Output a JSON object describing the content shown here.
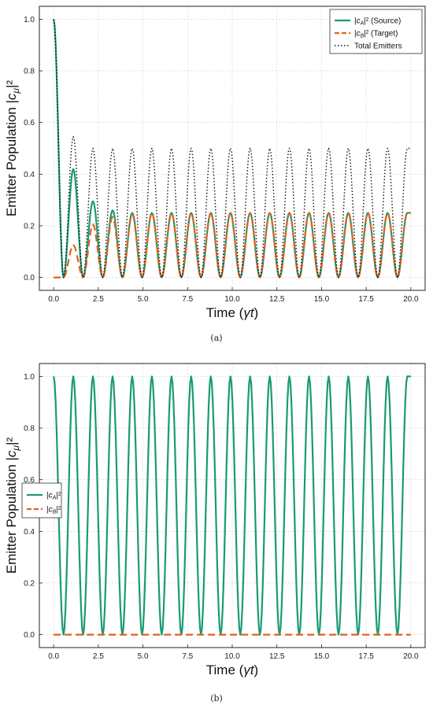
{
  "chart_data": [
    {
      "type": "line",
      "panel_caption": "(a)",
      "xlabel": "Time (γt)",
      "ylabel": "Emitter Population |cμ|²",
      "xlim": [
        -0.8,
        20.8
      ],
      "ylim": [
        -0.05,
        1.05
      ],
      "xticks": [
        "0.0",
        "2.5",
        "5.0",
        "7.5",
        "10.0",
        "12.5",
        "15.0",
        "17.5",
        "20.0"
      ],
      "yticks": [
        "0.0",
        "0.2",
        "0.4",
        "0.6",
        "0.8",
        "1.0"
      ],
      "grid": true,
      "legend_position": "top-right",
      "legend": [
        "|cA|² (Source)",
        "|cB|² (Target)",
        "Total Emitters"
      ],
      "series": [
        {
          "name": "|cA|² (Source)",
          "style": "solid",
          "color": "#1a9a75",
          "x": [
            0,
            0.55,
            1.1,
            1.65,
            2.2,
            2.75,
            3.3,
            3.85,
            4.4,
            4.95,
            5.5,
            6.05,
            6.6,
            7.15,
            7.7,
            8.25,
            8.8,
            9.35,
            9.9,
            10.45,
            11.0,
            11.55,
            12.1,
            12.65,
            13.2,
            13.75,
            14.3,
            14.85,
            15.4,
            15.95,
            16.5,
            17.05,
            17.6,
            18.15,
            18.7,
            19.25,
            19.8,
            20.0
          ],
          "y": [
            1.0,
            0.0,
            0.42,
            0.0,
            0.295,
            0.0,
            0.26,
            0.0,
            0.25,
            0.0,
            0.25,
            0.0,
            0.25,
            0.0,
            0.25,
            0.0,
            0.25,
            0.0,
            0.25,
            0.0,
            0.25,
            0.0,
            0.25,
            0.0,
            0.25,
            0.0,
            0.25,
            0.0,
            0.25,
            0.0,
            0.25,
            0.0,
            0.25,
            0.0,
            0.25,
            0.0,
            0.25,
            0.25
          ]
        },
        {
          "name": "|cB|² (Target)",
          "style": "dashed",
          "color": "#e2611b",
          "x": [
            0,
            0.55,
            1.1,
            1.65,
            2.2,
            2.75,
            3.3,
            3.85,
            4.4,
            4.95,
            5.5,
            6.05,
            6.6,
            7.15,
            7.7,
            8.25,
            8.8,
            9.35,
            9.9,
            10.45,
            11.0,
            11.55,
            12.1,
            12.65,
            13.2,
            13.75,
            14.3,
            14.85,
            15.4,
            15.95,
            16.5,
            17.05,
            17.6,
            18.15,
            18.7,
            19.25,
            19.8,
            20.0
          ],
          "y": [
            0.0,
            0.0,
            0.125,
            0.0,
            0.205,
            0.0,
            0.235,
            0.0,
            0.245,
            0.0,
            0.25,
            0.0,
            0.25,
            0.0,
            0.25,
            0.0,
            0.25,
            0.0,
            0.25,
            0.0,
            0.25,
            0.0,
            0.25,
            0.0,
            0.25,
            0.0,
            0.25,
            0.0,
            0.25,
            0.0,
            0.25,
            0.0,
            0.25,
            0.0,
            0.25,
            0.0,
            0.25,
            0.25
          ]
        },
        {
          "name": "Total Emitters",
          "style": "dotted",
          "color": "#111111",
          "x": [
            0,
            0.55,
            1.1,
            1.65,
            2.2,
            2.75,
            3.3,
            3.85,
            4.4,
            4.95,
            5.5,
            6.05,
            6.6,
            7.15,
            7.7,
            8.25,
            8.8,
            9.35,
            9.9,
            10.45,
            11.0,
            11.55,
            12.1,
            12.65,
            13.2,
            13.75,
            14.3,
            14.85,
            15.4,
            15.95,
            16.5,
            17.05,
            17.6,
            18.15,
            18.7,
            19.25,
            19.8,
            20.0
          ],
          "y": [
            1.0,
            0.0,
            0.545,
            0.0,
            0.5,
            0.0,
            0.5,
            0.0,
            0.5,
            0.0,
            0.5,
            0.0,
            0.5,
            0.0,
            0.5,
            0.0,
            0.5,
            0.0,
            0.5,
            0.0,
            0.5,
            0.0,
            0.5,
            0.0,
            0.5,
            0.0,
            0.5,
            0.0,
            0.5,
            0.0,
            0.5,
            0.0,
            0.5,
            0.0,
            0.5,
            0.0,
            0.5,
            0.5
          ]
        }
      ]
    },
    {
      "type": "line",
      "panel_caption": "(b)",
      "xlabel": "Time (γt)",
      "ylabel": "Emitter Population |cμ|²",
      "xlim": [
        -0.8,
        20.8
      ],
      "ylim": [
        -0.05,
        1.05
      ],
      "xticks": [
        "0.0",
        "2.5",
        "5.0",
        "7.5",
        "10.0",
        "12.5",
        "15.0",
        "17.5",
        "20.0"
      ],
      "yticks": [
        "0.0",
        "0.2",
        "0.4",
        "0.6",
        "0.8",
        "1.0"
      ],
      "grid": true,
      "legend_position": "center-left",
      "legend": [
        "|cA|²",
        "|cB|²"
      ],
      "series": [
        {
          "name": "|cA|²",
          "style": "solid",
          "color": "#1a9a75",
          "x": [
            0,
            0.55,
            1.1,
            1.65,
            2.2,
            2.75,
            3.3,
            3.85,
            4.4,
            4.95,
            5.5,
            6.05,
            6.6,
            7.15,
            7.7,
            8.25,
            8.8,
            9.35,
            9.9,
            10.45,
            11.0,
            11.55,
            12.1,
            12.65,
            13.2,
            13.75,
            14.3,
            14.85,
            15.4,
            15.95,
            16.5,
            17.05,
            17.6,
            18.15,
            18.7,
            19.25,
            19.8,
            20.0
          ],
          "y": [
            1.0,
            0.0,
            1.0,
            0.0,
            1.0,
            0.0,
            1.0,
            0.0,
            1.0,
            0.0,
            1.0,
            0.0,
            1.0,
            0.0,
            1.0,
            0.0,
            1.0,
            0.0,
            1.0,
            0.0,
            1.0,
            0.0,
            1.0,
            0.0,
            1.0,
            0.0,
            1.0,
            0.0,
            1.0,
            0.0,
            1.0,
            0.0,
            1.0,
            0.0,
            1.0,
            0.0,
            1.0,
            1.0
          ]
        },
        {
          "name": "|cB|²",
          "style": "dashed",
          "color": "#e2611b",
          "x": [
            0,
            5,
            10,
            15,
            20
          ],
          "y": [
            0.0,
            0.0,
            0.0,
            0.0,
            0.0
          ]
        }
      ]
    }
  ]
}
